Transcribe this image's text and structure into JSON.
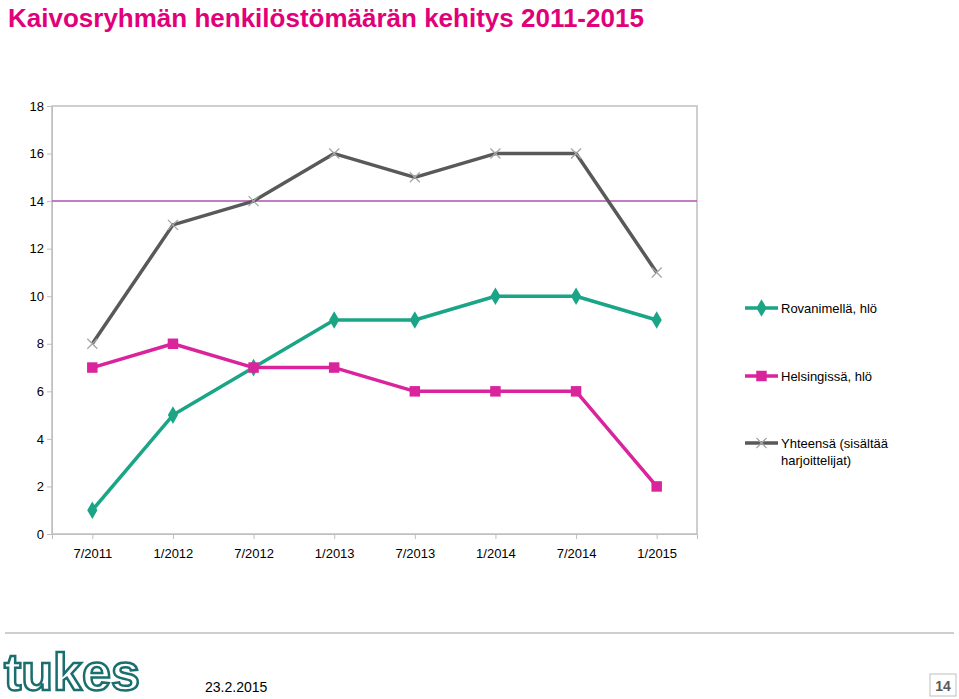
{
  "chart_data": {
    "type": "line",
    "title": "Kaivosryhmän henkilöstömäärän kehitys 2011-2015",
    "categories": [
      "7/2011",
      "1/2012",
      "7/2012",
      "1/2013",
      "7/2013",
      "1/2014",
      "7/2014",
      "1/2015"
    ],
    "series": [
      {
        "name": "Rovanimellä, hlö",
        "color": "#1aa587",
        "marker": "diamond",
        "values": [
          1,
          5,
          7,
          9,
          9,
          10,
          10,
          9
        ]
      },
      {
        "name": "Helsingissä, hlö",
        "color": "#d9249c",
        "marker": "square",
        "values": [
          7,
          8,
          7,
          7,
          6,
          6,
          6,
          2
        ]
      },
      {
        "name": "Yhteensä (sisältää harjoittelijat)",
        "color": "#595959",
        "marker": "x",
        "values": [
          8,
          13,
          14,
          16,
          15,
          16,
          16,
          11
        ]
      }
    ],
    "reference_line": {
      "value": 14,
      "color": "#b050b0"
    },
    "ylim": [
      0,
      18
    ],
    "yticks": [
      0,
      2,
      4,
      6,
      8,
      10,
      12,
      14,
      16,
      18
    ],
    "grid": false,
    "legend": "right"
  },
  "footer": {
    "logo": "tukes",
    "date": "23.2.2015",
    "page": "14"
  }
}
